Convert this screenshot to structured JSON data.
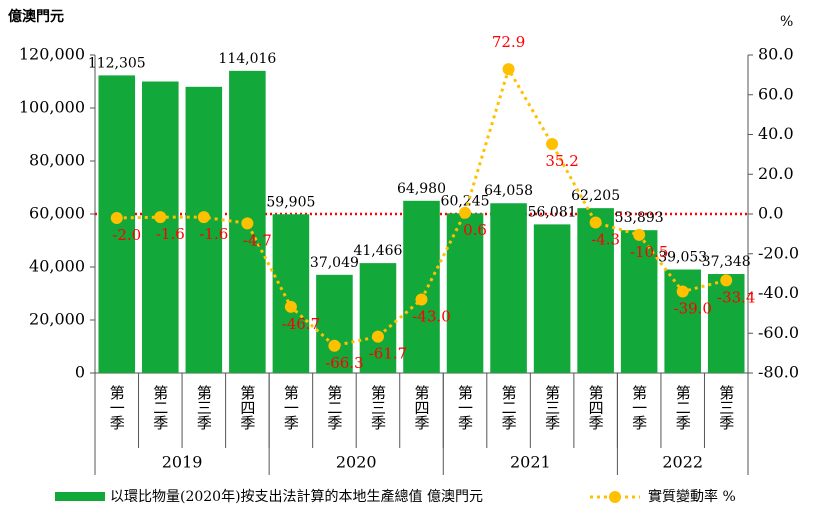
{
  "chart_data": {
    "type": "bar_line",
    "y_axis_label": "億澳門元",
    "y2_axis_label": "%",
    "categories": [
      "第一季",
      "第二季",
      "第三季",
      "第四季",
      "第一季",
      "第二季",
      "第三季",
      "第四季",
      "第一季",
      "第二季",
      "第三季",
      "第四季",
      "第一季",
      "第二季",
      "第三季"
    ],
    "groups": [
      {
        "label": "2019",
        "size": 4
      },
      {
        "label": "2020",
        "size": 4
      },
      {
        "label": "2021",
        "size": 4
      },
      {
        "label": "2022",
        "size": 3
      }
    ],
    "series": [
      {
        "name": "以環比物量(2020年)按支出法計算的本地生產總值 億澳門元",
        "type": "bar",
        "color": "#12a83a",
        "values": [
          112305,
          110000,
          108000,
          114016,
          59905,
          37049,
          41466,
          64980,
          60245,
          64058,
          56081,
          62205,
          53893,
          39053,
          37348
        ],
        "value_labels": [
          "112,305",
          null,
          null,
          "114,016",
          "59,905",
          "37,049",
          "41,466",
          "64,980",
          "60,245",
          "64,058",
          "56,081",
          "62,205",
          "53,893",
          "39,053",
          "37,348"
        ]
      },
      {
        "name": "實質變動率 %",
        "type": "line",
        "axis": "y2",
        "color": "#ffc000",
        "values": [
          -2.0,
          -1.6,
          -1.6,
          -4.7,
          -46.7,
          -66.3,
          -61.7,
          -43.0,
          0.6,
          72.9,
          35.2,
          -4.3,
          -10.5,
          -39.0,
          -33.4
        ],
        "value_labels": [
          "-2.0",
          "-1.6",
          "-1.6",
          "-4.7",
          "-46.7",
          "-66.3",
          "-61.7",
          "-43.0",
          "0.6",
          "72.9",
          "35.2",
          "-4.3",
          "-10.5",
          "-39.0",
          "-33.4"
        ]
      }
    ],
    "ylim": [
      0,
      120000
    ],
    "yticks": [
      0,
      {
        "value": 20000,
        "label": "20,000"
      },
      {
        "value": 40000,
        "label": "40,000"
      },
      {
        "value": 60000,
        "label": "60,000"
      },
      {
        "value": 80000,
        "label": "80,000"
      },
      {
        "value": 100000,
        "label": "100,000"
      },
      {
        "value": 120000,
        "label": "120,000"
      }
    ],
    "y2lim": [
      -80,
      80
    ],
    "y2ticks": [
      {
        "value": -80,
        "label": "-80.0"
      },
      {
        "value": -60,
        "label": "-60.0"
      },
      {
        "value": -40,
        "label": "-40.0"
      },
      {
        "value": -20,
        "label": "-20.0"
      },
      {
        "value": 0,
        "label": "0.0"
      },
      {
        "value": 20,
        "label": "20.0"
      },
      {
        "value": 40,
        "label": "40.0"
      },
      {
        "value": 60,
        "label": "60.0"
      },
      {
        "value": 80,
        "label": "80.0"
      }
    ],
    "reference_line_color": "#ff0000",
    "label_color": "#ff0000"
  }
}
